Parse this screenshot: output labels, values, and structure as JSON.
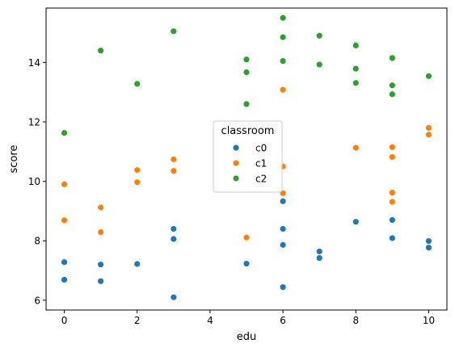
{
  "chart_data": {
    "type": "scatter",
    "title": "",
    "xlabel": "edu",
    "ylabel": "score",
    "xlim": [
      -0.5,
      10.5
    ],
    "ylim": [
      5.67,
      15.83
    ],
    "xticks": [
      0,
      2,
      4,
      6,
      8,
      10
    ],
    "yticks": [
      6,
      8,
      10,
      12,
      14
    ],
    "grid": false,
    "legend": {
      "title": "classroom",
      "placement": "center"
    },
    "series": [
      {
        "name": "c0",
        "color": "#1f77b4",
        "points": [
          [
            0,
            7.28
          ],
          [
            0,
            6.69
          ],
          [
            1,
            7.2
          ],
          [
            1,
            6.64
          ],
          [
            2,
            7.22
          ],
          [
            3,
            8.4
          ],
          [
            3,
            8.06
          ],
          [
            3,
            6.1
          ],
          [
            5,
            7.23
          ],
          [
            6,
            9.33
          ],
          [
            6,
            8.4
          ],
          [
            6,
            7.86
          ],
          [
            6,
            6.44
          ],
          [
            7,
            7.64
          ],
          [
            7,
            7.42
          ],
          [
            8,
            8.64
          ],
          [
            9,
            8.7
          ],
          [
            9,
            8.09
          ],
          [
            10,
            7.99
          ],
          [
            10,
            7.77
          ]
        ]
      },
      {
        "name": "c1",
        "color": "#ff7f0e",
        "points": [
          [
            0,
            9.9
          ],
          [
            0,
            8.69
          ],
          [
            1,
            9.12
          ],
          [
            1,
            8.29
          ],
          [
            2,
            10.38
          ],
          [
            2,
            9.97
          ],
          [
            3,
            10.74
          ],
          [
            3,
            10.35
          ],
          [
            5,
            8.11
          ],
          [
            6,
            13.08
          ],
          [
            6,
            10.5
          ],
          [
            6,
            9.6
          ],
          [
            8,
            11.13
          ],
          [
            9,
            11.15
          ],
          [
            9,
            10.82
          ],
          [
            9,
            9.62
          ],
          [
            9,
            9.31
          ],
          [
            10,
            11.8
          ],
          [
            10,
            11.57
          ]
        ]
      },
      {
        "name": "c2",
        "color": "#2ca02c",
        "points": [
          [
            0,
            11.63
          ],
          [
            1,
            14.4
          ],
          [
            2,
            13.28
          ],
          [
            3,
            15.05
          ],
          [
            5,
            14.1
          ],
          [
            5,
            13.67
          ],
          [
            5,
            12.6
          ],
          [
            6,
            15.5
          ],
          [
            6,
            14.85
          ],
          [
            6,
            14.05
          ],
          [
            7,
            14.9
          ],
          [
            7,
            13.93
          ],
          [
            8,
            14.6
          ],
          [
            8,
            14.57
          ],
          [
            8,
            13.79
          ],
          [
            8,
            13.31
          ],
          [
            9,
            14.15
          ],
          [
            9,
            13.23
          ],
          [
            9,
            12.93
          ],
          [
            10,
            13.54
          ]
        ]
      }
    ]
  }
}
